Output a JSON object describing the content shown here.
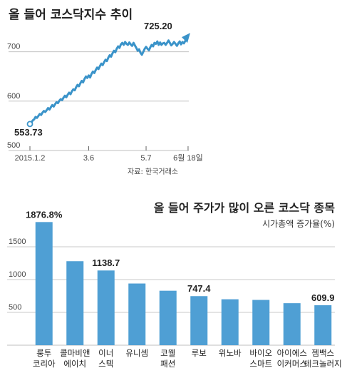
{
  "chart_data": [
    {
      "type": "line",
      "title": "올 들어 코스닥지수 추이",
      "source": "자료: 한국거래소",
      "yticks": [
        "500",
        "600",
        "700"
      ],
      "ylim": [
        500,
        750
      ],
      "xticks": [
        "2015.1.2",
        "3.6",
        "5.7",
        "6월 18일"
      ],
      "xtick_index": [
        0,
        42,
        83,
        113
      ],
      "start_label": "553.73",
      "end_label": "725.20",
      "color": "#3a93c9",
      "values": [
        553.7,
        556,
        561,
        563,
        568,
        566,
        570,
        574,
        572,
        577,
        580,
        578,
        582,
        586,
        583,
        588,
        592,
        589,
        594,
        598,
        596,
        601,
        604,
        602,
        607,
        611,
        608,
        613,
        617,
        614,
        620,
        624,
        622,
        628,
        633,
        630,
        636,
        641,
        638,
        645,
        650,
        647,
        652,
        648,
        655,
        660,
        657,
        663,
        668,
        665,
        671,
        676,
        673,
        679,
        684,
        681,
        688,
        693,
        690,
        697,
        702,
        699,
        706,
        711,
        708,
        715,
        718,
        714,
        720,
        716,
        714,
        719,
        715,
        712,
        718,
        713,
        708,
        702,
        705,
        698,
        694,
        700,
        706,
        710,
        706,
        703,
        709,
        714,
        711,
        718,
        716,
        721,
        714,
        719,
        714,
        717,
        718,
        714,
        718,
        723,
        718,
        713,
        716,
        720,
        716,
        712,
        717,
        721,
        715,
        720,
        717,
        722,
        725.2
      ]
    },
    {
      "type": "bar",
      "title": "올 들어 주가가 많이 오른 코스닥 종목",
      "subtitle": "시가총액 증가율(%)",
      "ylim": [
        0,
        2000
      ],
      "yticks": [
        "500",
        "1000",
        "1500"
      ],
      "color": "#4f9fd4",
      "categories": [
        [
          "룽투",
          "코리아"
        ],
        [
          "콜마비앤",
          "에이치"
        ],
        [
          "이너",
          "스텍"
        ],
        [
          "유니셈",
          ""
        ],
        [
          "코웰",
          "패션"
        ],
        [
          "루보",
          ""
        ],
        [
          "위노바",
          ""
        ],
        [
          "바이오",
          "스마트"
        ],
        [
          "아이에스",
          "이커머스"
        ],
        [
          "젬백스",
          "테크놀러지"
        ]
      ],
      "values": [
        1876.8,
        1280,
        1138.7,
        940,
        830,
        747.4,
        700,
        690,
        640,
        609.9
      ],
      "value_labels": [
        "1876.8%",
        "",
        "1138.7",
        "",
        "",
        "747.4",
        "",
        "",
        "",
        "609.9"
      ]
    }
  ]
}
